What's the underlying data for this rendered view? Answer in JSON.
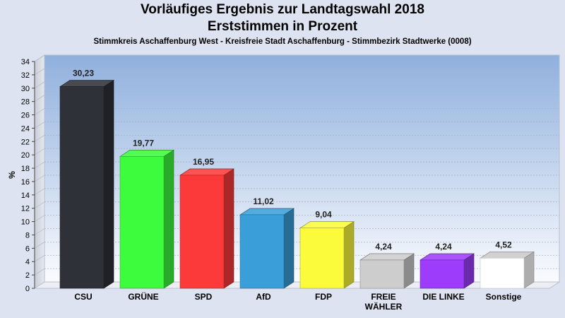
{
  "header": {
    "title_line1": "Vorläufiges Ergebnis zur Landtagswahl 2018",
    "title_line2": "Erststimmen in Prozent",
    "subtitle": "Stimmkreis Aschaffenburg West - Kreisfreie Stadt Aschaffenburg - Stimmbezirk Stadtwerke (0008)"
  },
  "chart_data": {
    "type": "bar",
    "title": "Vorläufiges Ergebnis zur Landtagswahl 2018",
    "subtitle": "Erststimmen in Prozent",
    "xlabel": "",
    "ylabel": "%",
    "ylim": [
      0,
      34
    ],
    "ytick_step": 2,
    "grid": true,
    "categories": [
      {
        "label": [
          "CSU"
        ],
        "value": 30.23,
        "value_label": "30,23",
        "color": "#2e3138"
      },
      {
        "label": [
          "GRÜNE"
        ],
        "value": 19.77,
        "value_label": "19,77",
        "color": "#3dfb3d"
      },
      {
        "label": [
          "SPD"
        ],
        "value": 16.95,
        "value_label": "16,95",
        "color": "#fd3a3a"
      },
      {
        "label": [
          "AfD"
        ],
        "value": 11.02,
        "value_label": "11,02",
        "color": "#3a9fd8"
      },
      {
        "label": [
          "FDP"
        ],
        "value": 9.04,
        "value_label": "9,04",
        "color": "#fbfb3c"
      },
      {
        "label": [
          "FREIE",
          "WÄHLER"
        ],
        "value": 4.24,
        "value_label": "4,24",
        "color": "#cdcdcd"
      },
      {
        "label": [
          "DIE LINKE"
        ],
        "value": 4.24,
        "value_label": "4,24",
        "color": "#9d3cfb"
      },
      {
        "label": [
          "Sonstige"
        ],
        "value": 4.52,
        "value_label": "4,52",
        "color": "#ffffff"
      }
    ]
  }
}
